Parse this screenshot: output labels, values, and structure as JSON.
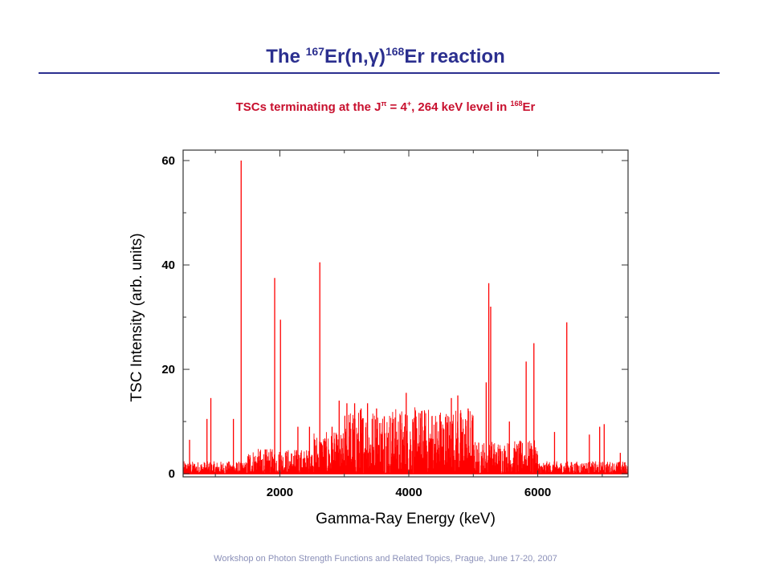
{
  "slide": {
    "title_pre": "The ",
    "title_mass1": "167",
    "title_mid": "Er(n,γ)",
    "title_mass2": "168",
    "title_post": "Er reaction",
    "subtitle_pre": "TSCs terminating at the J",
    "subtitle_pi": "π",
    "subtitle_mid": " = 4",
    "subtitle_plus": "+",
    "subtitle_post1": ", 264 keV level in ",
    "subtitle_mass": "168",
    "subtitle_post2": "Er",
    "footer": "Workshop on Photon Strength Functions and Related Topics, Prague, June 17-20, 2007"
  },
  "colors": {
    "title": "#2b2f8f",
    "subtitle": "#c8102e",
    "series": "#ff0000",
    "footer": "#8a8fb8"
  },
  "chart_data": {
    "type": "line",
    "xlabel": "Gamma-Ray Energy (keV)",
    "ylabel": "TSC Intensity (arb. units)",
    "xlim": [
      500,
      7400
    ],
    "ylim": [
      -0.6,
      62
    ],
    "xticks": [
      2000,
      4000,
      6000
    ],
    "yticks": [
      0,
      20,
      40,
      60
    ],
    "grid": false,
    "series": [
      {
        "style": "spectrum-peaks",
        "peaks": [
          {
            "x": 600,
            "y": 6.5
          },
          {
            "x": 870,
            "y": 10.5
          },
          {
            "x": 930,
            "y": 14.5
          },
          {
            "x": 1280,
            "y": 10.5
          },
          {
            "x": 1400,
            "y": 60
          },
          {
            "x": 1920,
            "y": 37.5
          },
          {
            "x": 2010,
            "y": 29.5
          },
          {
            "x": 2280,
            "y": 9
          },
          {
            "x": 2460,
            "y": 9
          },
          {
            "x": 2620,
            "y": 40.5
          },
          {
            "x": 2810,
            "y": 9
          },
          {
            "x": 2920,
            "y": 14
          },
          {
            "x": 3040,
            "y": 13.5
          },
          {
            "x": 3160,
            "y": 13.5
          },
          {
            "x": 3260,
            "y": 12.5
          },
          {
            "x": 3360,
            "y": 13.5
          },
          {
            "x": 3500,
            "y": 12.5
          },
          {
            "x": 3620,
            "y": 11
          },
          {
            "x": 3760,
            "y": 10.5
          },
          {
            "x": 3960,
            "y": 15.5
          },
          {
            "x": 4200,
            "y": 12
          },
          {
            "x": 4360,
            "y": 11
          },
          {
            "x": 4500,
            "y": 10
          },
          {
            "x": 4660,
            "y": 14.5
          },
          {
            "x": 4760,
            "y": 15
          },
          {
            "x": 4920,
            "y": 12.5
          },
          {
            "x": 5200,
            "y": 17.5
          },
          {
            "x": 5240,
            "y": 36.5
          },
          {
            "x": 5270,
            "y": 32
          },
          {
            "x": 5560,
            "y": 10
          },
          {
            "x": 5820,
            "y": 21.5
          },
          {
            "x": 5940,
            "y": 25
          },
          {
            "x": 6260,
            "y": 8
          },
          {
            "x": 6450,
            "y": 29
          },
          {
            "x": 6800,
            "y": 7.5
          },
          {
            "x": 6960,
            "y": 9
          },
          {
            "x": 7030,
            "y": 9.5
          },
          {
            "x": 7280,
            "y": 4
          }
        ],
        "noise_bands": [
          {
            "x_from": 500,
            "x_to": 1500,
            "typical": 1.5
          },
          {
            "x_from": 1500,
            "x_to": 2500,
            "typical": 3
          },
          {
            "x_from": 2500,
            "x_to": 3000,
            "typical": 5
          },
          {
            "x_from": 3000,
            "x_to": 5000,
            "typical": 8
          },
          {
            "x_from": 5000,
            "x_to": 6000,
            "typical": 4
          },
          {
            "x_from": 6000,
            "x_to": 7400,
            "typical": 1.5
          }
        ]
      }
    ]
  }
}
